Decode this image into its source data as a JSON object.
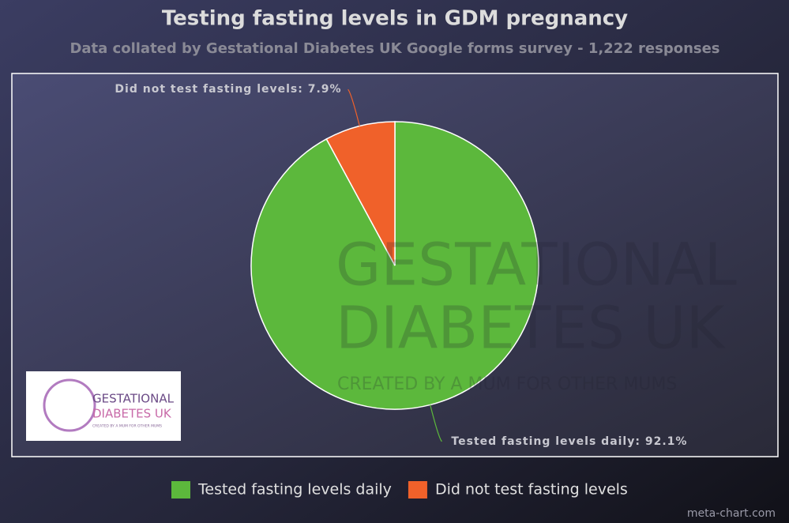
{
  "chart_data": {
    "type": "pie",
    "title": "Testing fasting levels in GDM pregnancy",
    "subtitle": "Data collated by Gestational Diabetes UK Google forms survey - 1,222 responses",
    "categories": [
      "Tested fasting levels daily",
      "Did not test fasting levels"
    ],
    "values": [
      92.1,
      7.9
    ],
    "value_labels": [
      "Tested fasting levels daily: 92.1%",
      "Did not test fasting levels: 7.9%"
    ],
    "colors": [
      "#5cb83c",
      "#f0612a"
    ],
    "legend": "bottom"
  },
  "branding": {
    "line1": "GESTATIONAL",
    "line2": "DIABETES UK",
    "tagline": "CREATED BY A MUM FOR OTHER MUMS",
    "credit": "meta-chart.com"
  }
}
